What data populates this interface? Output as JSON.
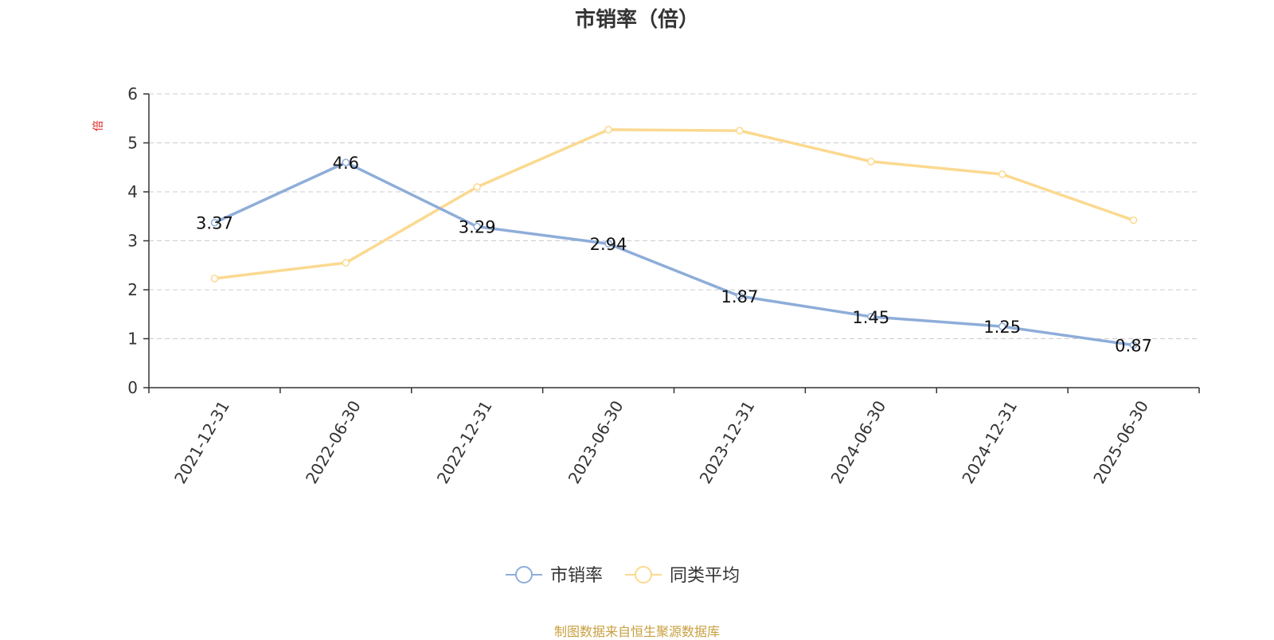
{
  "chart_data": {
    "type": "line",
    "title": "市销率（倍）",
    "ylabel": "倍",
    "xlabel": "",
    "categories": [
      "2021-12-31",
      "2022-06-30",
      "2022-12-31",
      "2023-06-30",
      "2023-12-31",
      "2024-06-30",
      "2024-12-31",
      "2025-06-30"
    ],
    "ylim": [
      0,
      6
    ],
    "yticks": [
      "0",
      "1",
      "2",
      "3",
      "4",
      "5",
      "6"
    ],
    "grid": true,
    "legend_position": "bottom-center",
    "series": [
      {
        "name": "市销率",
        "color": "#8eadd9",
        "values": [
          3.37,
          4.6,
          3.29,
          2.94,
          1.87,
          1.45,
          1.25,
          0.87
        ],
        "data_labels": [
          "3.37",
          "4.6",
          "3.29",
          "2.94",
          "1.87",
          "1.45",
          "1.25",
          "0.87"
        ]
      },
      {
        "name": "同类平均",
        "color": "#fbd990",
        "values": [
          2.23,
          2.55,
          4.1,
          5.27,
          5.25,
          4.62,
          4.36,
          3.42
        ]
      }
    ]
  },
  "source_note": "制图数据来自恒生聚源数据库",
  "colors": {
    "ylabel": "#e02020",
    "source": "#c8a040",
    "axis": "#333333",
    "grid": "#cccccc"
  }
}
